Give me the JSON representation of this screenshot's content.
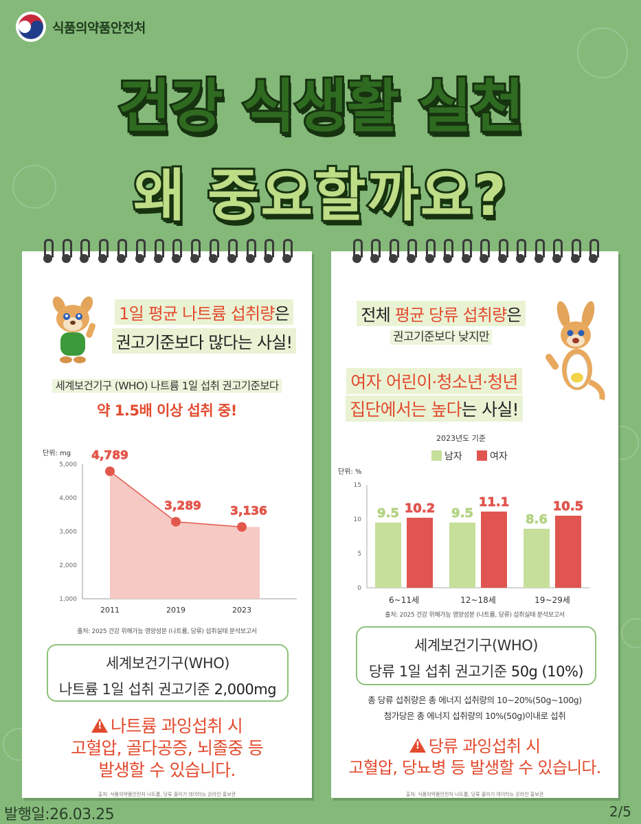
{
  "ministry": {
    "name": "식품의약품안전처"
  },
  "title": {
    "line1": "건강 식생활 실천",
    "line2": "왜 중요할까요?"
  },
  "left": {
    "headline_red": "1일 평균 나트륨 섭취량",
    "headline_rest": "은",
    "headline_line2": "권고기준보다 많다는 사실!",
    "sub_line": "세계보건기구 (WHO) 나트륨 1일 섭취 권고기준보다",
    "sub_emph": "약 1.5배 이상 섭취 중!",
    "source": "출처: 2025 건강 위해가능 영양성분 (나트륨, 당류) 섭취실태 분석보고서",
    "box_line1": "세계보건기구(WHO)",
    "box_line2_a": "나트륨 1일 섭취 권고기준 ",
    "box_line2_b": "2,000mg",
    "warn_line1": "나트륨 과잉섭취 시",
    "warn_line2": "고혈압, 골다공증, 뇌졸중 등",
    "warn_line3": "발생할 수 있습니다.",
    "bottom_source": "출처: 식품의약품안전처 나트륨, 당류 줄이기 데이터뉴 온라인 홍보관"
  },
  "right": {
    "headline_a": "전체 ",
    "headline_red": "평균 당류 섭취량",
    "headline_b": "은",
    "headline_line2": "권고기준보다 낮지만",
    "emph_line1": "여자 어린이·청소년·청년",
    "emph_line2_red": "집단에서는 높다",
    "emph_line2_rest": "는 사실!",
    "source": "출처: 2025 건강 위해가능 영양성분 (나트륨, 당류) 섭취실태 분석보고서",
    "box_line1": "세계보건기구(WHO)",
    "box_line2_a": "당류 1일 섭취 권고기준 ",
    "box_line2_b": "50g (10%)",
    "note1": "총 당류 섭취량은 총 에너지 섭취량의 10~20%(50g~100g)",
    "note2": "첨가당은 총 에너지 섭취량의 10%(50g)이내로 섭취",
    "warn_line1": "당류 과잉섭취 시",
    "warn_line2": "고혈압, 당뇨병 등 발생할 수 있습니다.",
    "bottom_source": "출처: 식품의약품안전처 나트륨, 당류 줄이기 데이터뉴 온라인 홍보관"
  },
  "footer": {
    "date": "발행일:26.03.25",
    "page": "2/5"
  },
  "colors": {
    "bg": "#84b97a",
    "red": "#e24a2e",
    "area": "#f6c9c4",
    "male": "#c6df9b",
    "female": "#e0554f"
  },
  "chart_data": [
    {
      "type": "area",
      "unit_label": "단위: mg",
      "x": [
        "2011",
        "2019",
        "2023"
      ],
      "values": [
        4789,
        3289,
        3136
      ],
      "value_labels": [
        "4,789",
        "3,289",
        "3,136"
      ],
      "ylim": [
        1000,
        5000
      ],
      "yticks": [
        "1,000",
        "2,000",
        "3,000",
        "4,000",
        "5,000"
      ]
    },
    {
      "type": "bar",
      "title": "2023년도 기준",
      "unit_label": "단위: %",
      "categories": [
        "6~11세",
        "12~18세",
        "19~29세"
      ],
      "series": [
        {
          "name": "남자",
          "values": [
            9.5,
            9.5,
            8.6
          ]
        },
        {
          "name": "여자",
          "values": [
            10.2,
            11.1,
            10.5
          ]
        }
      ],
      "ylim": [
        0,
        15
      ],
      "yticks": [
        "0",
        "5",
        "10",
        "15"
      ],
      "legend": "top-center"
    }
  ]
}
